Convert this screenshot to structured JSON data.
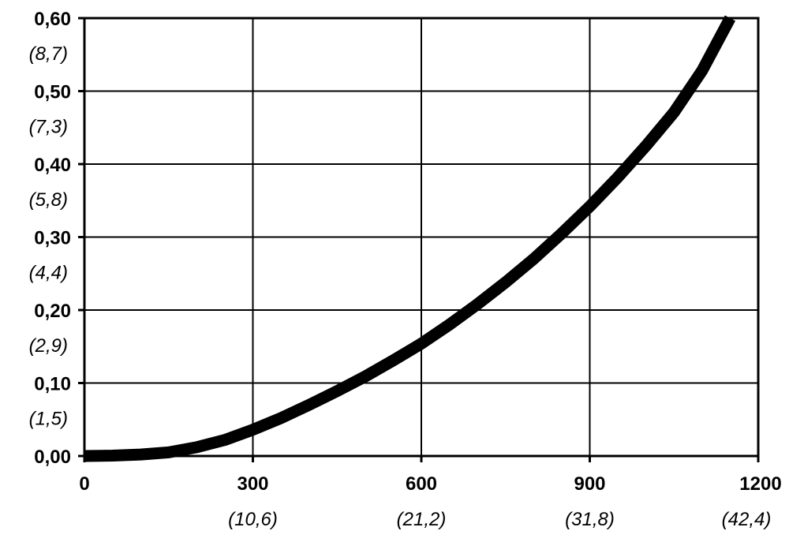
{
  "chart_data": {
    "type": "line",
    "title": "",
    "xlabel": "",
    "ylabel": "",
    "xlim": [
      0,
      1200
    ],
    "ylim": [
      0,
      0.6
    ],
    "grid": true,
    "x_ticks": [
      {
        "value": 0,
        "label": "0",
        "secondary": ""
      },
      {
        "value": 300,
        "label": "300",
        "secondary": "(10,6)"
      },
      {
        "value": 600,
        "label": "600",
        "secondary": "(21,2)"
      },
      {
        "value": 900,
        "label": "900",
        "secondary": "(31,8)"
      },
      {
        "value": 1200,
        "label": "1200",
        "secondary": "(42,4)"
      }
    ],
    "y_ticks": [
      {
        "value": 0.0,
        "label": "0,00",
        "secondary": ""
      },
      {
        "value": 0.1,
        "label": "0,10",
        "secondary": "(1,5)"
      },
      {
        "value": 0.2,
        "label": "0,20",
        "secondary": "(2,9)"
      },
      {
        "value": 0.3,
        "label": "0,30",
        "secondary": "(4,4)"
      },
      {
        "value": 0.4,
        "label": "0,40",
        "secondary": "(5,8)"
      },
      {
        "value": 0.5,
        "label": "0,50",
        "secondary": "(7,3)"
      },
      {
        "value": 0.6,
        "label": "0,60",
        "secondary": "(8,7)"
      }
    ],
    "series": [
      {
        "x": [
          0,
          50,
          100,
          150,
          200,
          250,
          300,
          350,
          400,
          450,
          500,
          550,
          600,
          650,
          700,
          750,
          800,
          850,
          900,
          950,
          1000,
          1050,
          1100,
          1150
        ],
        "y": [
          0.0,
          0.0005,
          0.002,
          0.005,
          0.012,
          0.022,
          0.036,
          0.052,
          0.07,
          0.089,
          0.109,
          0.131,
          0.154,
          0.18,
          0.208,
          0.238,
          0.27,
          0.305,
          0.342,
          0.382,
          0.425,
          0.471,
          0.528,
          0.6
        ]
      }
    ],
    "line_color": "#000000",
    "grid_color": "#000000"
  }
}
